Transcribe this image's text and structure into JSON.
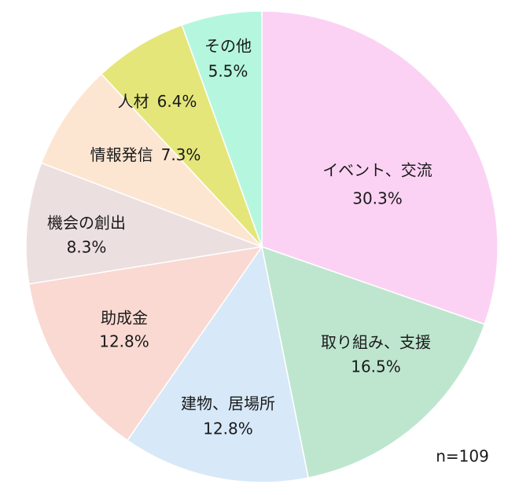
{
  "chart_data": {
    "type": "pie",
    "categories": [
      "イベント、交流",
      "取り組み、支援",
      "建物、居場所",
      "助成金",
      "機会の創出",
      "情報発信",
      "人材",
      "その他"
    ],
    "values": [
      30.3,
      16.5,
      12.8,
      12.8,
      8.3,
      7.3,
      6.4,
      5.5
    ],
    "value_labels": [
      "30.3%",
      "16.5%",
      "12.8%",
      "12.8%",
      "8.3%",
      "7.3%",
      "6.4%",
      "5.5%"
    ],
    "colors": [
      "#fbd2f4",
      "#bee6cf",
      "#d7e8f8",
      "#fad9d2",
      "#ecdfdf",
      "#fde6d1",
      "#e4e67a",
      "#b5f7de"
    ],
    "note": "n=109"
  }
}
